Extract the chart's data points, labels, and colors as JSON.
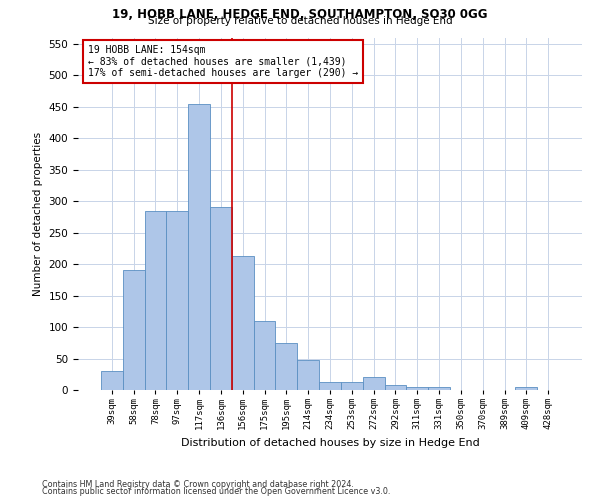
{
  "title1": "19, HOBB LANE, HEDGE END, SOUTHAMPTON, SO30 0GG",
  "title2": "Size of property relative to detached houses in Hedge End",
  "xlabel": "Distribution of detached houses by size in Hedge End",
  "ylabel": "Number of detached properties",
  "categories": [
    "39sqm",
    "58sqm",
    "78sqm",
    "97sqm",
    "117sqm",
    "136sqm",
    "156sqm",
    "175sqm",
    "195sqm",
    "214sqm",
    "234sqm",
    "253sqm",
    "272sqm",
    "292sqm",
    "311sqm",
    "331sqm",
    "350sqm",
    "370sqm",
    "389sqm",
    "409sqm",
    "428sqm"
  ],
  "values": [
    30,
    190,
    285,
    285,
    455,
    290,
    213,
    110,
    75,
    47,
    12,
    12,
    20,
    8,
    5,
    5,
    0,
    0,
    0,
    5,
    0
  ],
  "bar_color": "#aec6e8",
  "bar_edge_color": "#5a8fc2",
  "vline_x": 5.5,
  "vline_color": "#cc0000",
  "annotation_text": "19 HOBB LANE: 154sqm\n← 83% of detached houses are smaller (1,439)\n17% of semi-detached houses are larger (290) →",
  "annotation_box_color": "#ffffff",
  "annotation_box_edge_color": "#cc0000",
  "ylim": [
    0,
    560
  ],
  "yticks": [
    0,
    50,
    100,
    150,
    200,
    250,
    300,
    350,
    400,
    450,
    500,
    550
  ],
  "footnote1": "Contains HM Land Registry data © Crown copyright and database right 2024.",
  "footnote2": "Contains public sector information licensed under the Open Government Licence v3.0.",
  "background_color": "#ffffff",
  "grid_color": "#c8d4e8",
  "fig_width": 6.0,
  "fig_height": 5.0,
  "dpi": 100
}
